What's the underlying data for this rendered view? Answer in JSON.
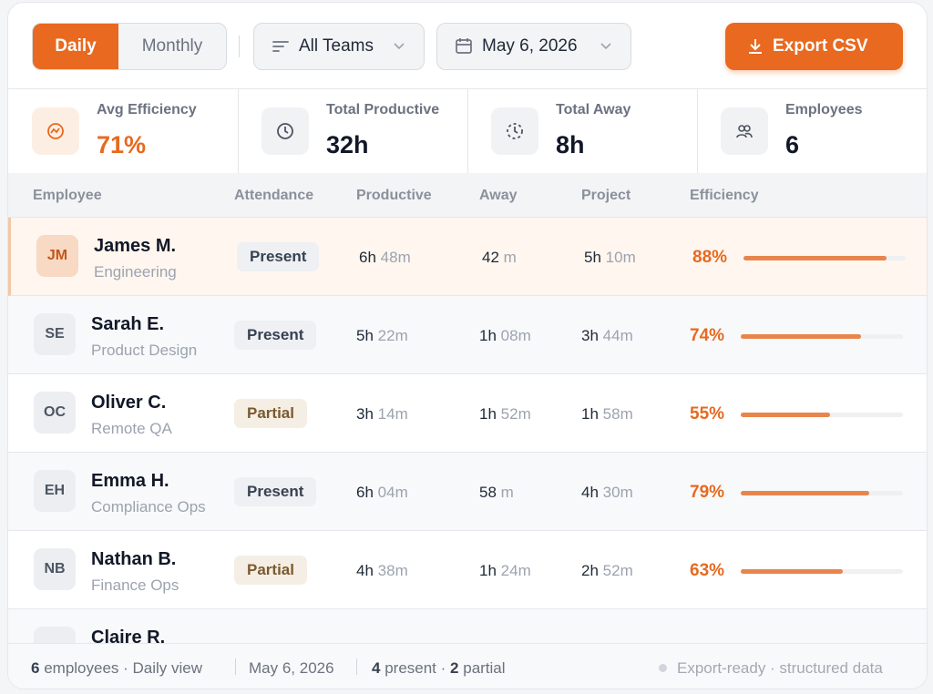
{
  "toolbar": {
    "view_tabs": [
      "Daily",
      "Monthly"
    ],
    "team_filter": "All Teams",
    "date": "May 6, 2026",
    "export": "Export CSV"
  },
  "stats": [
    {
      "label": "Avg Efficiency",
      "value": "71%"
    },
    {
      "label": "Total Productive",
      "value": "32h"
    },
    {
      "label": "Total Away",
      "value": "8h"
    },
    {
      "label": "Employees",
      "value": "6"
    }
  ],
  "table": {
    "columns": [
      "Employee",
      "Attendance",
      "Productive",
      "Away",
      "Project",
      "Efficiency"
    ],
    "rows": [
      {
        "initials": "JM",
        "name": "James M.",
        "team": "Engineering",
        "attendance": "Present",
        "attendance_color": "#eef0f3",
        "productive": [
          "6h",
          "48m"
        ],
        "away": [
          "42",
          "m"
        ],
        "project": [
          "5h",
          "10m"
        ],
        "efficiency": {
          "value": 88,
          "label": "88%"
        }
      },
      {
        "initials": "SE",
        "name": "Sarah E.",
        "team": "Product Design",
        "attendance": "Present",
        "attendance_color": "#eef0f3",
        "productive": [
          "5h",
          "22m"
        ],
        "away": [
          "1h",
          "08m"
        ],
        "project": [
          "3h",
          "44m"
        ],
        "efficiency": {
          "value": 74,
          "label": "74%"
        }
      },
      {
        "initials": "OC",
        "name": "Oliver C.",
        "team": "Remote QA",
        "attendance": "Partial",
        "attendance_color": "#f5eee4",
        "productive": [
          "3h",
          "14m"
        ],
        "away": [
          "1h",
          "52m"
        ],
        "project": [
          "1h",
          "58m"
        ],
        "efficiency": {
          "value": 55,
          "label": "55%"
        }
      },
      {
        "initials": "EH",
        "name": "Emma H.",
        "team": "Compliance Ops",
        "attendance": "Present",
        "attendance_color": "#eef0f3",
        "productive": [
          "6h",
          "04m"
        ],
        "away": [
          "58",
          "m"
        ],
        "project": [
          "4h",
          "30m"
        ],
        "efficiency": {
          "value": 79,
          "label": "79%"
        }
      },
      {
        "initials": "NB",
        "name": "Nathan B.",
        "team": "Finance Ops",
        "attendance": "Partial",
        "attendance_color": "#f5eee4",
        "productive": [
          "4h",
          "38m"
        ],
        "away": [
          "1h",
          "24m"
        ],
        "project": [
          "2h",
          "52m"
        ],
        "efficiency": {
          "value": 63,
          "label": "63%"
        }
      },
      {
        "name": "Claire R."
      }
    ]
  },
  "footer": {
    "count": "6",
    "count_text": "employees · Daily view",
    "date": "May 6, 2026",
    "present_count": "4",
    "present_text": "present ·",
    "partial_count": "2",
    "partial_text": "partial",
    "status": "Export-ready · structured data"
  }
}
